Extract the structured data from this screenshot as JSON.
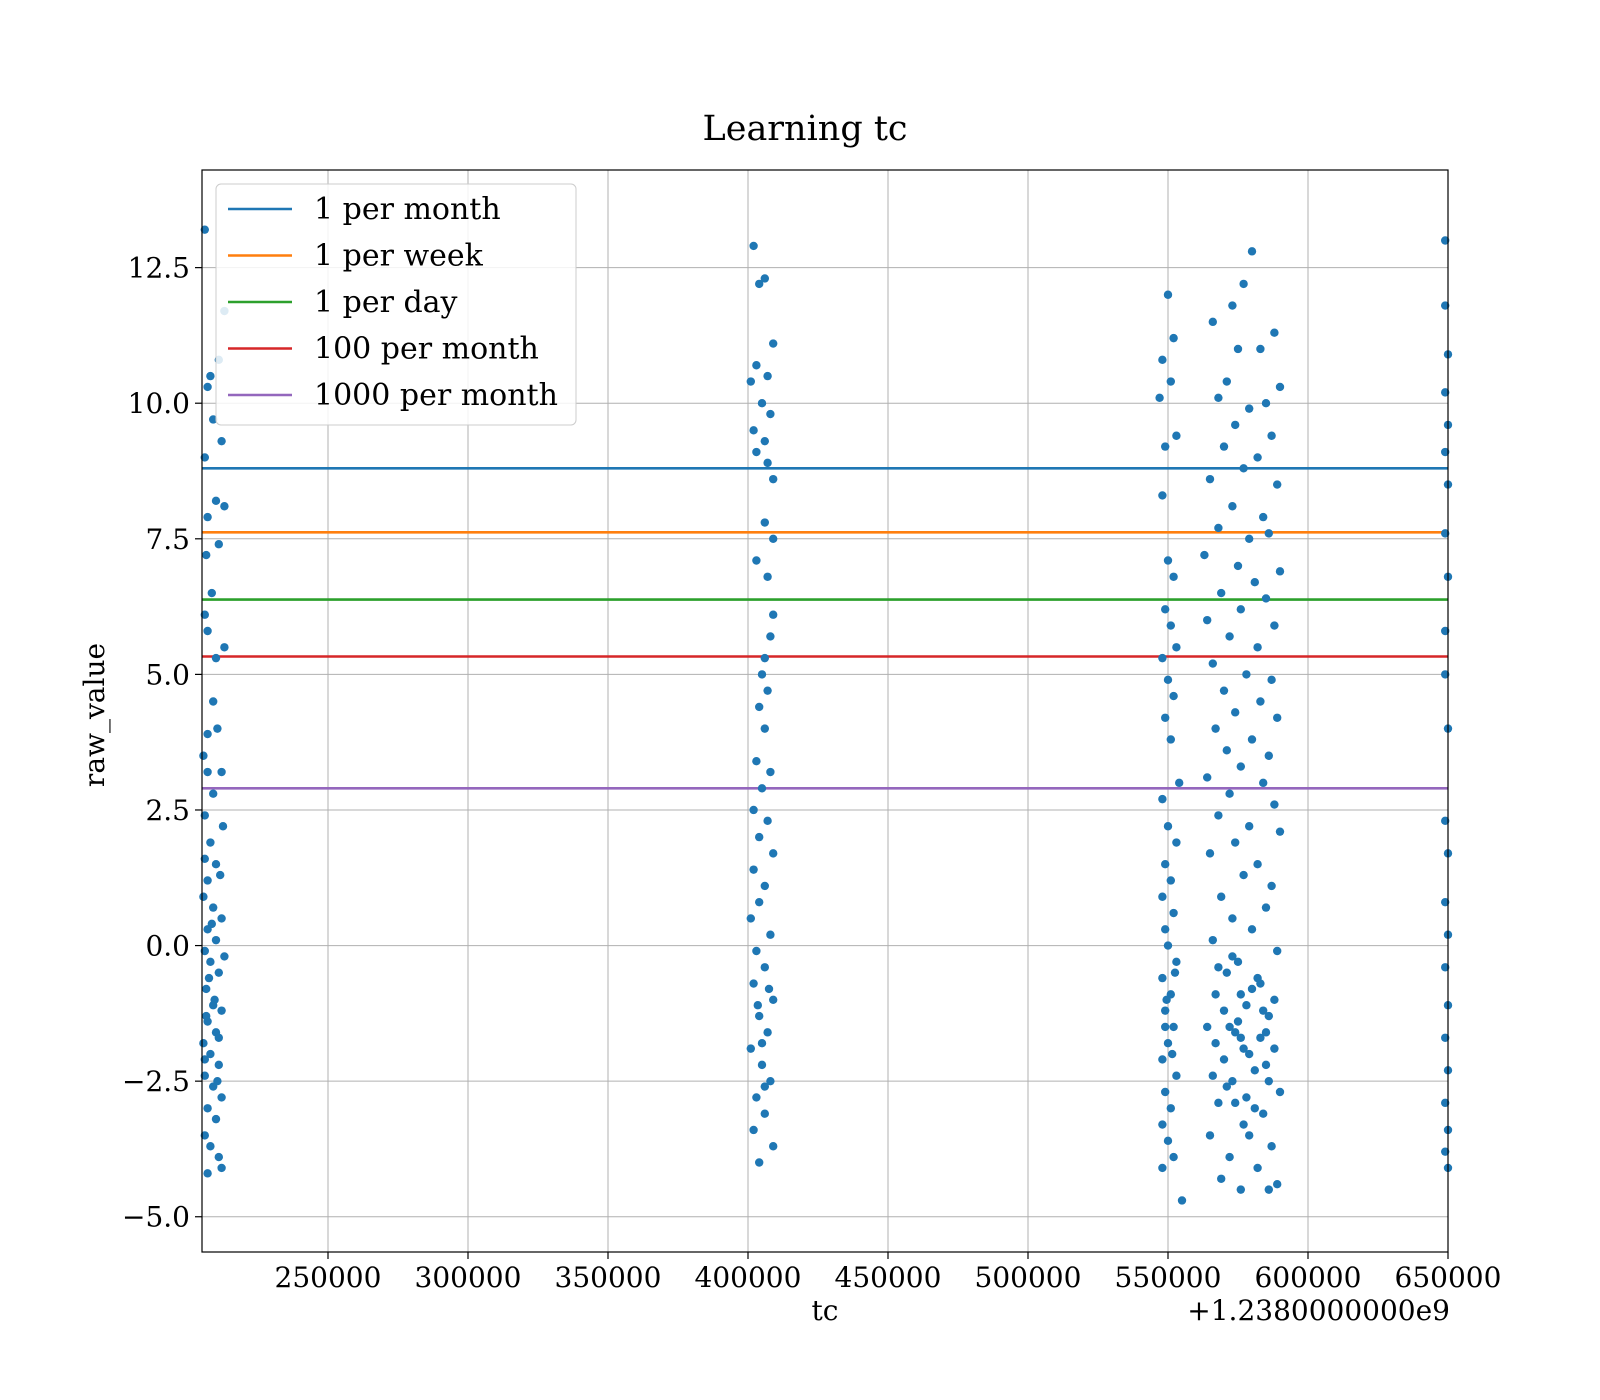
{
  "chart_data": {
    "type": "scatter",
    "title": "Learning tc",
    "xlabel": "tc",
    "ylabel": "raw_value",
    "x_offset_text": "+1.2380000000e9",
    "xlim": [
      1238205000,
      1238650000
    ],
    "ylim": [
      -5.65,
      14.3
    ],
    "x_ticks": [
      250000,
      300000,
      350000,
      400000,
      450000,
      500000,
      550000,
      600000,
      650000
    ],
    "x_tick_labels": [
      "250000",
      "300000",
      "350000",
      "400000",
      "450000",
      "500000",
      "550000",
      "600000",
      "650000"
    ],
    "y_ticks": [
      -5.0,
      -2.5,
      0.0,
      2.5,
      5.0,
      7.5,
      10.0,
      12.5
    ],
    "y_tick_labels": [
      "−5.0",
      "−2.5",
      "0.0",
      "2.5",
      "5.0",
      "7.5",
      "10.0",
      "12.5"
    ],
    "grid": true,
    "legend_position": "top-left",
    "scatter_color": "#1f77b4",
    "lines": [
      {
        "name": "1 per month",
        "y": 8.8,
        "color": "#1f77b4"
      },
      {
        "name": "1 per week",
        "y": 7.62,
        "color": "#ff7f0e"
      },
      {
        "name": "1 per day",
        "y": 6.38,
        "color": "#2ca02c"
      },
      {
        "name": "100 per month",
        "y": 5.33,
        "color": "#d62728"
      },
      {
        "name": "1000 per month",
        "y": 2.9,
        "color": "#9467bd"
      }
    ],
    "points": [
      [
        1238206000,
        13.2
      ],
      [
        1238208000,
        10.5
      ],
      [
        1238213000,
        11.7
      ],
      [
        1238211000,
        10.8
      ],
      [
        1238207000,
        10.3
      ],
      [
        1238209000,
        9.7
      ],
      [
        1238212000,
        9.3
      ],
      [
        1238206000,
        9.0
      ],
      [
        1238210000,
        8.2
      ],
      [
        1238213000,
        8.1
      ],
      [
        1238207000,
        7.9
      ],
      [
        1238211000,
        7.4
      ],
      [
        1238206500,
        7.2
      ],
      [
        1238208500,
        6.5
      ],
      [
        1238206000,
        6.1
      ],
      [
        1238207000,
        5.8
      ],
      [
        1238213000,
        5.5
      ],
      [
        1238210000,
        5.3
      ],
      [
        1238209000,
        4.5
      ],
      [
        1238207000,
        3.9
      ],
      [
        1238210500,
        4.0
      ],
      [
        1238205500,
        3.5
      ],
      [
        1238207000,
        3.2
      ],
      [
        1238212000,
        3.2
      ],
      [
        1238209000,
        2.8
      ],
      [
        1238206000,
        2.4
      ],
      [
        1238212500,
        2.2
      ],
      [
        1238208000,
        1.9
      ],
      [
        1238206000,
        1.6
      ],
      [
        1238210000,
        1.5
      ],
      [
        1238207000,
        1.2
      ],
      [
        1238211500,
        1.3
      ],
      [
        1238205500,
        0.9
      ],
      [
        1238209000,
        0.7
      ],
      [
        1238212000,
        0.5
      ],
      [
        1238207000,
        0.3
      ],
      [
        1238210000,
        0.1
      ],
      [
        1238206000,
        -0.1
      ],
      [
        1238208000,
        -0.3
      ],
      [
        1238211000,
        -0.5
      ],
      [
        1238206500,
        -0.8
      ],
      [
        1238209500,
        -1.0
      ],
      [
        1238212000,
        -1.2
      ],
      [
        1238207000,
        -1.4
      ],
      [
        1238210000,
        -1.6
      ],
      [
        1238205500,
        -1.8
      ],
      [
        1238208000,
        -2.0
      ],
      [
        1238211000,
        -2.2
      ],
      [
        1238206000,
        -2.4
      ],
      [
        1238209000,
        -2.6
      ],
      [
        1238212000,
        -2.8
      ],
      [
        1238207000,
        -3.0
      ],
      [
        1238210000,
        -3.2
      ],
      [
        1238206000,
        -3.5
      ],
      [
        1238208000,
        -3.7
      ],
      [
        1238211000,
        -3.9
      ],
      [
        1238207000,
        -4.2
      ],
      [
        1238212000,
        -4.1
      ],
      [
        1238209000,
        -1.1
      ],
      [
        1238207500,
        -0.6
      ],
      [
        1238211000,
        -1.7
      ],
      [
        1238206000,
        -2.1
      ],
      [
        1238213000,
        -0.2
      ],
      [
        1238208500,
        0.4
      ],
      [
        1238206500,
        -1.3
      ],
      [
        1238210500,
        -2.5
      ],
      [
        1238402000,
        12.9
      ],
      [
        1238404000,
        12.2
      ],
      [
        1238406000,
        12.3
      ],
      [
        1238409000,
        11.1
      ],
      [
        1238403000,
        10.7
      ],
      [
        1238401000,
        10.4
      ],
      [
        1238407000,
        10.5
      ],
      [
        1238405000,
        10.0
      ],
      [
        1238408000,
        9.8
      ],
      [
        1238402000,
        9.5
      ],
      [
        1238406000,
        9.3
      ],
      [
        1238403000,
        9.1
      ],
      [
        1238407000,
        8.9
      ],
      [
        1238409000,
        8.6
      ],
      [
        1238406000,
        7.8
      ],
      [
        1238409000,
        7.5
      ],
      [
        1238403000,
        7.1
      ],
      [
        1238407000,
        6.8
      ],
      [
        1238409000,
        6.1
      ],
      [
        1238408000,
        5.7
      ],
      [
        1238406000,
        5.3
      ],
      [
        1238405000,
        5.0
      ],
      [
        1238407000,
        4.7
      ],
      [
        1238404000,
        4.4
      ],
      [
        1238406000,
        4.0
      ],
      [
        1238403000,
        3.4
      ],
      [
        1238408000,
        3.2
      ],
      [
        1238405000,
        2.9
      ],
      [
        1238402000,
        2.5
      ],
      [
        1238407000,
        2.3
      ],
      [
        1238404000,
        2.0
      ],
      [
        1238409000,
        1.7
      ],
      [
        1238402000,
        1.4
      ],
      [
        1238406000,
        1.1
      ],
      [
        1238404000,
        0.8
      ],
      [
        1238401000,
        0.5
      ],
      [
        1238408000,
        0.2
      ],
      [
        1238403000,
        -0.1
      ],
      [
        1238406000,
        -0.4
      ],
      [
        1238402000,
        -0.7
      ],
      [
        1238409000,
        -1.0
      ],
      [
        1238404000,
        -1.3
      ],
      [
        1238407000,
        -1.6
      ],
      [
        1238401000,
        -1.9
      ],
      [
        1238405000,
        -2.2
      ],
      [
        1238408000,
        -2.5
      ],
      [
        1238403000,
        -2.8
      ],
      [
        1238406000,
        -3.1
      ],
      [
        1238402000,
        -3.4
      ],
      [
        1238409000,
        -3.7
      ],
      [
        1238404000,
        -4.0
      ],
      [
        1238406000,
        -2.6
      ],
      [
        1238403500,
        -1.1
      ],
      [
        1238407500,
        -0.8
      ],
      [
        1238405000,
        -1.8
      ],
      [
        1238550000,
        12.0
      ],
      [
        1238552000,
        11.2
      ],
      [
        1238548000,
        10.8
      ],
      [
        1238551000,
        10.4
      ],
      [
        1238547000,
        10.1
      ],
      [
        1238553000,
        9.4
      ],
      [
        1238549000,
        9.2
      ],
      [
        1238548000,
        8.3
      ],
      [
        1238550000,
        7.1
      ],
      [
        1238552000,
        6.8
      ],
      [
        1238549000,
        6.2
      ],
      [
        1238551000,
        5.9
      ],
      [
        1238553000,
        5.5
      ],
      [
        1238548000,
        5.3
      ],
      [
        1238550000,
        4.9
      ],
      [
        1238552000,
        4.6
      ],
      [
        1238549000,
        4.2
      ],
      [
        1238551000,
        3.8
      ],
      [
        1238554000,
        3.0
      ],
      [
        1238548000,
        2.7
      ],
      [
        1238550000,
        2.2
      ],
      [
        1238553000,
        1.9
      ],
      [
        1238549000,
        1.5
      ],
      [
        1238551000,
        1.2
      ],
      [
        1238548000,
        0.9
      ],
      [
        1238552000,
        0.6
      ],
      [
        1238549000,
        0.3
      ],
      [
        1238550000,
        0.0
      ],
      [
        1238553000,
        -0.3
      ],
      [
        1238548000,
        -0.6
      ],
      [
        1238551000,
        -0.9
      ],
      [
        1238549000,
        -1.2
      ],
      [
        1238552000,
        -1.5
      ],
      [
        1238550000,
        -1.8
      ],
      [
        1238548000,
        -2.1
      ],
      [
        1238553000,
        -2.4
      ],
      [
        1238549000,
        -2.7
      ],
      [
        1238551000,
        -3.0
      ],
      [
        1238548000,
        -3.3
      ],
      [
        1238550000,
        -3.6
      ],
      [
        1238552000,
        -3.9
      ],
      [
        1238548000,
        -4.1
      ],
      [
        1238555000,
        -4.7
      ],
      [
        1238549500,
        -1.0
      ],
      [
        1238551500,
        -2.0
      ],
      [
        1238549000,
        -1.5
      ],
      [
        1238552500,
        -0.5
      ],
      [
        1238580000,
        12.8
      ],
      [
        1238577000,
        12.2
      ],
      [
        1238573000,
        11.8
      ],
      [
        1238583000,
        11.0
      ],
      [
        1238566000,
        11.5
      ],
      [
        1238588000,
        11.3
      ],
      [
        1238575000,
        11.0
      ],
      [
        1238571000,
        10.4
      ],
      [
        1238590000,
        10.3
      ],
      [
        1238585000,
        10.0
      ],
      [
        1238568000,
        10.1
      ],
      [
        1238579000,
        9.9
      ],
      [
        1238574000,
        9.6
      ],
      [
        1238587000,
        9.4
      ],
      [
        1238570000,
        9.2
      ],
      [
        1238582000,
        9.0
      ],
      [
        1238577000,
        8.8
      ],
      [
        1238565000,
        8.6
      ],
      [
        1238589000,
        8.5
      ],
      [
        1238573000,
        8.1
      ],
      [
        1238584000,
        7.9
      ],
      [
        1238568000,
        7.7
      ],
      [
        1238579000,
        7.5
      ],
      [
        1238586000,
        7.6
      ],
      [
        1238563000,
        7.2
      ],
      [
        1238575000,
        7.0
      ],
      [
        1238590000,
        6.9
      ],
      [
        1238581000,
        6.7
      ],
      [
        1238569000,
        6.5
      ],
      [
        1238585000,
        6.4
      ],
      [
        1238576000,
        6.2
      ],
      [
        1238564000,
        6.0
      ],
      [
        1238588000,
        5.9
      ],
      [
        1238572000,
        5.7
      ],
      [
        1238582000,
        5.5
      ],
      [
        1238566000,
        5.2
      ],
      [
        1238578000,
        5.0
      ],
      [
        1238587000,
        4.9
      ],
      [
        1238570000,
        4.7
      ],
      [
        1238583000,
        4.5
      ],
      [
        1238574000,
        4.3
      ],
      [
        1238589000,
        4.2
      ],
      [
        1238567000,
        4.0
      ],
      [
        1238580000,
        3.8
      ],
      [
        1238571000,
        3.6
      ],
      [
        1238586000,
        3.5
      ],
      [
        1238576000,
        3.3
      ],
      [
        1238564000,
        3.1
      ],
      [
        1238584000,
        3.0
      ],
      [
        1238572000,
        2.8
      ],
      [
        1238588000,
        2.6
      ],
      [
        1238568000,
        2.4
      ],
      [
        1238579000,
        2.2
      ],
      [
        1238590000,
        2.1
      ],
      [
        1238574000,
        1.9
      ],
      [
        1238565000,
        1.7
      ],
      [
        1238582000,
        1.5
      ],
      [
        1238577000,
        1.3
      ],
      [
        1238587000,
        1.1
      ],
      [
        1238569000,
        0.9
      ],
      [
        1238585000,
        0.7
      ],
      [
        1238573000,
        0.5
      ],
      [
        1238580000,
        0.3
      ],
      [
        1238566000,
        0.1
      ],
      [
        1238589000,
        -0.1
      ],
      [
        1238575000,
        -0.3
      ],
      [
        1238571000,
        -0.5
      ],
      [
        1238583000,
        -0.7
      ],
      [
        1238567000,
        -0.9
      ],
      [
        1238578000,
        -1.1
      ],
      [
        1238586000,
        -1.3
      ],
      [
        1238564000,
        -1.5
      ],
      [
        1238576000,
        -1.7
      ],
      [
        1238588000,
        -1.9
      ],
      [
        1238570000,
        -2.1
      ],
      [
        1238581000,
        -2.3
      ],
      [
        1238573000,
        -2.5
      ],
      [
        1238590000,
        -2.7
      ],
      [
        1238568000,
        -2.9
      ],
      [
        1238584000,
        -3.1
      ],
      [
        1238577000,
        -3.3
      ],
      [
        1238565000,
        -3.5
      ],
      [
        1238587000,
        -3.7
      ],
      [
        1238572000,
        -3.9
      ],
      [
        1238582000,
        -4.1
      ],
      [
        1238569000,
        -4.3
      ],
      [
        1238576000,
        -4.5
      ],
      [
        1238589000,
        -4.4
      ],
      [
        1238586000,
        -4.5
      ],
      [
        1238574000,
        -1.6
      ],
      [
        1238579000,
        -2.0
      ],
      [
        1238567000,
        -1.8
      ],
      [
        1238584000,
        -1.2
      ],
      [
        1238571000,
        -2.6
      ],
      [
        1238580000,
        -0.8
      ],
      [
        1238585000,
        -2.2
      ],
      [
        1238575000,
        -1.4
      ],
      [
        1238578000,
        -2.8
      ],
      [
        1238583000,
        -1.7
      ],
      [
        1238573000,
        -0.2
      ],
      [
        1238588000,
        -1.0
      ],
      [
        1238566000,
        -2.4
      ],
      [
        1238581000,
        -3.0
      ],
      [
        1238577000,
        -1.9
      ],
      [
        1238570000,
        -1.2
      ],
      [
        1238586000,
        -2.5
      ],
      [
        1238572000,
        -1.5
      ],
      [
        1238574000,
        -2.9
      ],
      [
        1238582000,
        -0.6
      ],
      [
        1238568000,
        -0.4
      ],
      [
        1238579000,
        -3.5
      ],
      [
        1238576000,
        -0.9
      ],
      [
        1238585000,
        -1.6
      ],
      [
        1238649000,
        13.0
      ],
      [
        1238649000,
        11.8
      ],
      [
        1238650000,
        10.9
      ],
      [
        1238649000,
        10.2
      ],
      [
        1238650000,
        9.6
      ],
      [
        1238649000,
        9.1
      ],
      [
        1238650000,
        8.5
      ],
      [
        1238649000,
        7.6
      ],
      [
        1238650000,
        6.8
      ],
      [
        1238649000,
        5.8
      ],
      [
        1238649000,
        5.0
      ],
      [
        1238650000,
        4.0
      ],
      [
        1238649000,
        2.3
      ],
      [
        1238650000,
        1.7
      ],
      [
        1238649000,
        0.8
      ],
      [
        1238650000,
        0.2
      ],
      [
        1238649000,
        -0.4
      ],
      [
        1238650000,
        -1.1
      ],
      [
        1238649000,
        -1.7
      ],
      [
        1238650000,
        -2.3
      ],
      [
        1238649000,
        -2.9
      ],
      [
        1238650000,
        -3.4
      ],
      [
        1238649000,
        -3.8
      ],
      [
        1238650000,
        -4.1
      ]
    ]
  }
}
